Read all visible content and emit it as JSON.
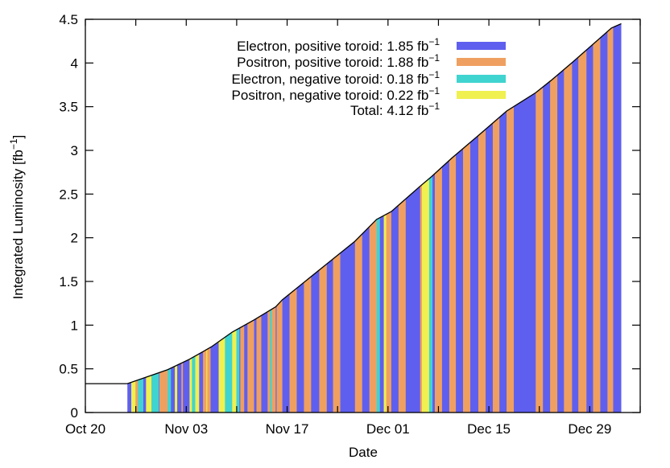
{
  "chart_data": {
    "type": "area",
    "xlabel": "Date",
    "ylabel": "Integrated Luminosity [fb",
    "ylabel_sup": "−1",
    "ylabel_close": "]",
    "xlim": [
      "Oct 20 00",
      "Jan 05 00"
    ],
    "ylim": [
      0,
      4.5
    ],
    "x_ticks": [
      "Oct 20",
      "Nov 03",
      "Nov 17",
      "Dec 01",
      "Dec 15",
      "Dec 29"
    ],
    "y_ticks": [
      "0",
      "0.5",
      "1",
      "1.5",
      "2",
      "2.5",
      "3",
      "3.5",
      "4",
      "4.5"
    ],
    "grid": false,
    "legend_placement": "top-center",
    "legend": [
      {
        "key": "E+",
        "label": "Electron, positive toroid:",
        "value": "1.85 fb",
        "unit_sup": "−1",
        "color": "#5f5fef"
      },
      {
        "key": "P+",
        "label": "Positron, positive toroid:",
        "value": "1.88 fb",
        "unit_sup": "−1",
        "color": "#efa060"
      },
      {
        "key": "E-",
        "label": "Electron, negative toroid:",
        "value": "0.18 fb",
        "unit_sup": "−1",
        "color": "#40d4d0"
      },
      {
        "key": "P-",
        "label": "Positron, negative toroid:",
        "value": "0.22 fb",
        "unit_sup": "−1",
        "color": "#f0f050"
      },
      {
        "key": "total",
        "label": "Total:",
        "value": "4.12 fb",
        "unit_sup": "−1",
        "color": null
      }
    ],
    "curve": [
      [
        "Oct 20 00",
        0.33
      ],
      [
        "Oct 25 20",
        0.33
      ],
      [
        "Oct 31 10",
        0.49
      ],
      [
        "Nov 03 11",
        0.61
      ],
      [
        "Nov 06 11",
        0.75
      ],
      [
        "Nov 09 09",
        0.92
      ],
      [
        "Nov 12 10",
        1.06
      ],
      [
        "Nov 15 10",
        1.21
      ],
      [
        "Nov 16 08",
        1.29
      ],
      [
        "Nov 22 12",
        1.7
      ],
      [
        "Nov 26 10",
        1.96
      ],
      [
        "Nov 29 10",
        2.21
      ],
      [
        "Dec 01 11",
        2.3
      ],
      [
        "Dec 05 11",
        2.59
      ],
      [
        "Dec 07 01",
        2.7
      ],
      [
        "Dec 09 20",
        2.91
      ],
      [
        "Dec 13 13",
        3.17
      ],
      [
        "Dec 17 11",
        3.45
      ],
      [
        "Dec 21 12",
        3.66
      ],
      [
        "Dec 23 15",
        3.8
      ],
      [
        "Dec 26 15",
        4.01
      ],
      [
        "Jan 01 00",
        4.4
      ],
      [
        "Jan 02 09",
        4.45
      ]
    ],
    "run_periods": [
      [
        "Oct 25 20",
        "E+"
      ],
      [
        "Oct 26 09",
        "P-"
      ],
      [
        "Oct 26 23",
        "P+"
      ],
      [
        "Oct 27 07",
        "E-"
      ],
      [
        "Oct 28 01",
        "E+"
      ],
      [
        "Oct 28 10",
        "P-"
      ],
      [
        "Oct 29 04",
        "E-"
      ],
      [
        "Oct 30 05",
        "E+"
      ],
      [
        "Oct 30 07",
        "P+"
      ],
      [
        "Oct 31 10",
        "E-"
      ],
      [
        "Oct 31 21",
        "E+"
      ],
      [
        "Nov 01 10",
        "P-"
      ],
      [
        "Nov 01 18",
        "E+"
      ],
      [
        "Nov 02 08",
        "P+"
      ],
      [
        "Nov 02 13",
        "E+"
      ],
      [
        "Nov 03 11",
        "P-"
      ],
      [
        "Nov 03 19",
        "E-"
      ],
      [
        "Nov 04 06",
        "P-"
      ],
      [
        "Nov 04 19",
        "E+"
      ],
      [
        "Nov 05 08",
        "P+"
      ],
      [
        "Nov 05 19",
        "P-"
      ],
      [
        "Nov 05 22",
        "P+"
      ],
      [
        "Nov 06 09",
        "E+"
      ],
      [
        "Nov 07 12",
        "P-"
      ],
      [
        "Nov 08 09",
        "E-"
      ],
      [
        "Nov 09 09",
        "P-"
      ],
      [
        "Nov 09 23",
        "E-"
      ],
      [
        "Nov 10 09",
        "E+"
      ],
      [
        "Nov 10 12",
        "P+"
      ],
      [
        "Nov 11 01",
        "E+"
      ],
      [
        "Nov 11 12",
        "P+"
      ],
      [
        "Nov 12 10",
        "E+"
      ],
      [
        "Nov 12 18",
        "P+"
      ],
      [
        "Nov 13 10",
        "E+"
      ],
      [
        "Nov 14 07",
        "P+"
      ],
      [
        "Nov 14 15",
        "E-"
      ],
      [
        "Nov 14 21",
        "P+"
      ],
      [
        "Nov 15 10",
        "E+"
      ],
      [
        "Nov 15 13",
        "P+"
      ],
      [
        "Nov 16 08",
        "E+"
      ],
      [
        "Nov 17 08",
        "P+"
      ],
      [
        "Nov 18 08",
        "E+"
      ],
      [
        "Nov 19 08",
        "P+"
      ],
      [
        "Nov 20 08",
        "E+"
      ],
      [
        "Nov 21 11",
        "P+"
      ],
      [
        "Nov 22 12",
        "E+"
      ],
      [
        "Nov 23 09",
        "P+"
      ],
      [
        "Nov 24 09",
        "E+"
      ],
      [
        "Nov 26 10",
        "P+"
      ],
      [
        "Nov 27 10",
        "E+"
      ],
      [
        "Nov 28 10",
        "P+"
      ],
      [
        "Nov 29 10",
        "E-"
      ],
      [
        "Nov 29 21",
        "E+"
      ],
      [
        "Nov 30 10",
        "P-"
      ],
      [
        "Nov 30 18",
        "P+"
      ],
      [
        "Dec 01 11",
        "E+"
      ],
      [
        "Dec 02 11",
        "P+"
      ],
      [
        "Dec 03 11",
        "E+"
      ],
      [
        "Dec 05 11",
        "P+"
      ],
      [
        "Dec 05 17",
        "P-"
      ],
      [
        "Dec 06 17",
        "E-"
      ],
      [
        "Dec 07 04",
        "E+"
      ],
      [
        "Dec 07 12",
        "P+"
      ],
      [
        "Dec 08 12",
        "E+"
      ],
      [
        "Dec 09 12",
        "P+"
      ],
      [
        "Dec 10 10",
        "E+"
      ],
      [
        "Dec 11 10",
        "P+"
      ],
      [
        "Dec 12 10",
        "E+"
      ],
      [
        "Dec 13 13",
        "P+"
      ],
      [
        "Dec 14 13",
        "E+"
      ],
      [
        "Dec 15 13",
        "P+"
      ],
      [
        "Dec 16 11",
        "E+"
      ],
      [
        "Dec 17 11",
        "P+"
      ],
      [
        "Dec 18 11",
        "E+"
      ],
      [
        "Dec 21 12",
        "P+"
      ],
      [
        "Dec 22 12",
        "E+"
      ],
      [
        "Dec 23 12",
        "P+"
      ],
      [
        "Dec 24 12",
        "E+"
      ],
      [
        "Dec 25 10",
        "P+"
      ],
      [
        "Dec 26 13",
        "E+"
      ],
      [
        "Dec 27 10",
        "P+"
      ],
      [
        "Dec 28 13",
        "E+"
      ],
      [
        "Dec 29 11",
        "P+"
      ],
      [
        "Dec 30 11",
        "E+"
      ],
      [
        "Dec 31 11",
        "P+"
      ],
      [
        "Jan 01 06",
        "E+"
      ],
      [
        "Jan 02 09",
        "end"
      ]
    ]
  }
}
